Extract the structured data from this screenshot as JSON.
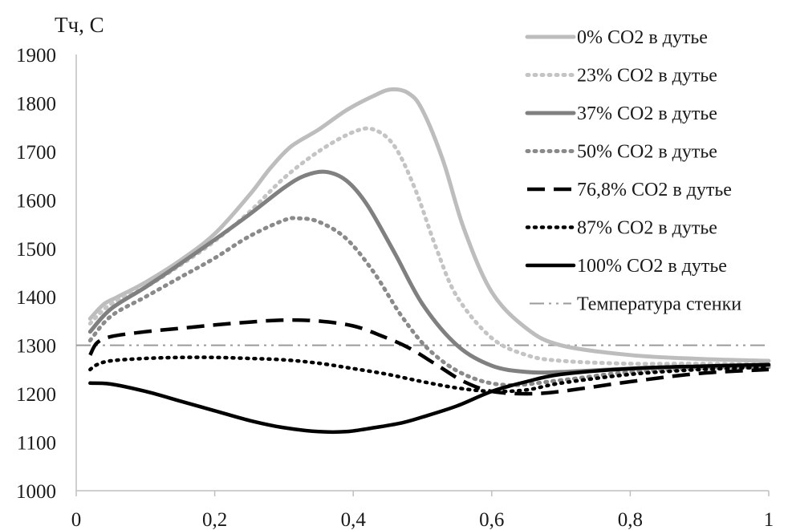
{
  "chart_data": {
    "type": "line",
    "ylabel": "Тч, С",
    "xlabel": "",
    "xlim": [
      0,
      1
    ],
    "ylim": [
      1000,
      1900
    ],
    "x_ticks": [
      {
        "value": 0,
        "label": "0"
      },
      {
        "value": 0.2,
        "label": "0,2"
      },
      {
        "value": 0.4,
        "label": "0,4"
      },
      {
        "value": 0.6,
        "label": "0,6"
      },
      {
        "value": 0.8,
        "label": "0,8"
      },
      {
        "value": 1,
        "label": "1"
      }
    ],
    "y_ticks": [
      {
        "value": 1000,
        "label": "1000"
      },
      {
        "value": 1100,
        "label": "1100"
      },
      {
        "value": 1200,
        "label": "1200"
      },
      {
        "value": 1300,
        "label": "1300"
      },
      {
        "value": 1400,
        "label": "1400"
      },
      {
        "value": 1500,
        "label": "1500"
      },
      {
        "value": 1600,
        "label": "1600"
      },
      {
        "value": 1700,
        "label": "1700"
      },
      {
        "value": 1800,
        "label": "1800"
      },
      {
        "value": 1900,
        "label": "1900"
      }
    ],
    "grid": false,
    "legend_position": "right",
    "series": [
      {
        "name": "0% CO2 в дутье",
        "color": "#bdbdbd",
        "dash": "solid",
        "width": 5,
        "points": [
          [
            0.02,
            1355
          ],
          [
            0.04,
            1385
          ],
          [
            0.06,
            1400
          ],
          [
            0.1,
            1430
          ],
          [
            0.15,
            1475
          ],
          [
            0.2,
            1530
          ],
          [
            0.25,
            1610
          ],
          [
            0.28,
            1665
          ],
          [
            0.31,
            1710
          ],
          [
            0.35,
            1745
          ],
          [
            0.39,
            1785
          ],
          [
            0.43,
            1815
          ],
          [
            0.455,
            1828
          ],
          [
            0.48,
            1820
          ],
          [
            0.5,
            1785
          ],
          [
            0.53,
            1680
          ],
          [
            0.56,
            1540
          ],
          [
            0.6,
            1410
          ],
          [
            0.65,
            1335
          ],
          [
            0.7,
            1300
          ],
          [
            0.8,
            1280
          ],
          [
            0.9,
            1272
          ],
          [
            1.0,
            1268
          ]
        ]
      },
      {
        "name": "23% CO2 в дутье",
        "color": "#c4c4c4",
        "dash": "dotted",
        "width": 5,
        "points": [
          [
            0.02,
            1345
          ],
          [
            0.05,
            1385
          ],
          [
            0.1,
            1420
          ],
          [
            0.15,
            1465
          ],
          [
            0.2,
            1515
          ],
          [
            0.25,
            1575
          ],
          [
            0.3,
            1645
          ],
          [
            0.35,
            1700
          ],
          [
            0.4,
            1740
          ],
          [
            0.43,
            1745
          ],
          [
            0.46,
            1710
          ],
          [
            0.49,
            1620
          ],
          [
            0.52,
            1500
          ],
          [
            0.55,
            1400
          ],
          [
            0.6,
            1315
          ],
          [
            0.65,
            1280
          ],
          [
            0.7,
            1268
          ],
          [
            0.8,
            1262
          ],
          [
            0.9,
            1262
          ],
          [
            1.0,
            1260
          ]
        ]
      },
      {
        "name": "37% CO2 в дутье",
        "color": "#808080",
        "dash": "solid",
        "width": 5,
        "points": [
          [
            0.02,
            1328
          ],
          [
            0.05,
            1375
          ],
          [
            0.1,
            1420
          ],
          [
            0.15,
            1468
          ],
          [
            0.2,
            1518
          ],
          [
            0.25,
            1570
          ],
          [
            0.3,
            1625
          ],
          [
            0.33,
            1650
          ],
          [
            0.36,
            1658
          ],
          [
            0.39,
            1640
          ],
          [
            0.42,
            1590
          ],
          [
            0.46,
            1490
          ],
          [
            0.5,
            1385
          ],
          [
            0.55,
            1300
          ],
          [
            0.6,
            1258
          ],
          [
            0.65,
            1245
          ],
          [
            0.7,
            1245
          ],
          [
            0.8,
            1252
          ],
          [
            0.9,
            1256
          ],
          [
            1.0,
            1258
          ]
        ]
      },
      {
        "name": "50% CO2 в дутье",
        "color": "#8a8a8a",
        "dash": "dotted",
        "width": 5,
        "points": [
          [
            0.02,
            1310
          ],
          [
            0.05,
            1360
          ],
          [
            0.1,
            1400
          ],
          [
            0.15,
            1440
          ],
          [
            0.2,
            1480
          ],
          [
            0.25,
            1525
          ],
          [
            0.3,
            1558
          ],
          [
            0.32,
            1562
          ],
          [
            0.35,
            1555
          ],
          [
            0.39,
            1520
          ],
          [
            0.43,
            1450
          ],
          [
            0.47,
            1360
          ],
          [
            0.51,
            1290
          ],
          [
            0.56,
            1240
          ],
          [
            0.62,
            1218
          ],
          [
            0.7,
            1228
          ],
          [
            0.8,
            1245
          ],
          [
            0.9,
            1252
          ],
          [
            1.0,
            1255
          ]
        ]
      },
      {
        "name": "76,8% CO2 в дутье",
        "color": "#000000",
        "dash": "dashed",
        "width": 4.5,
        "points": [
          [
            0.02,
            1280
          ],
          [
            0.03,
            1305
          ],
          [
            0.05,
            1318
          ],
          [
            0.1,
            1328
          ],
          [
            0.15,
            1335
          ],
          [
            0.2,
            1342
          ],
          [
            0.25,
            1348
          ],
          [
            0.3,
            1352
          ],
          [
            0.35,
            1350
          ],
          [
            0.4,
            1340
          ],
          [
            0.44,
            1320
          ],
          [
            0.48,
            1295
          ],
          [
            0.52,
            1260
          ],
          [
            0.56,
            1225
          ],
          [
            0.6,
            1205
          ],
          [
            0.65,
            1200
          ],
          [
            0.7,
            1205
          ],
          [
            0.8,
            1225
          ],
          [
            0.9,
            1242
          ],
          [
            1.0,
            1250
          ]
        ]
      },
      {
        "name": "87% CO2 в дутье",
        "color": "#000000",
        "dash": "dotted",
        "width": 4.5,
        "points": [
          [
            0.02,
            1250
          ],
          [
            0.03,
            1260
          ],
          [
            0.05,
            1268
          ],
          [
            0.1,
            1273
          ],
          [
            0.15,
            1275
          ],
          [
            0.2,
            1275
          ],
          [
            0.25,
            1273
          ],
          [
            0.3,
            1270
          ],
          [
            0.35,
            1263
          ],
          [
            0.4,
            1252
          ],
          [
            0.45,
            1240
          ],
          [
            0.5,
            1225
          ],
          [
            0.55,
            1212
          ],
          [
            0.6,
            1205
          ],
          [
            0.65,
            1208
          ],
          [
            0.7,
            1222
          ],
          [
            0.8,
            1240
          ],
          [
            0.9,
            1250
          ],
          [
            1.0,
            1255
          ]
        ]
      },
      {
        "name": "100% CO2 в дутье",
        "color": "#000000",
        "dash": "solid",
        "width": 4.5,
        "points": [
          [
            0.02,
            1222
          ],
          [
            0.05,
            1220
          ],
          [
            0.1,
            1205
          ],
          [
            0.15,
            1185
          ],
          [
            0.2,
            1165
          ],
          [
            0.25,
            1145
          ],
          [
            0.3,
            1130
          ],
          [
            0.35,
            1122
          ],
          [
            0.39,
            1122
          ],
          [
            0.43,
            1130
          ],
          [
            0.47,
            1140
          ],
          [
            0.5,
            1152
          ],
          [
            0.55,
            1175
          ],
          [
            0.6,
            1205
          ],
          [
            0.65,
            1225
          ],
          [
            0.7,
            1240
          ],
          [
            0.8,
            1252
          ],
          [
            0.9,
            1257
          ],
          [
            1.0,
            1260
          ]
        ]
      },
      {
        "name": "Температура стенки",
        "color": "#9a9a9a",
        "dash": "dashdotdot",
        "width": 2,
        "points": [
          [
            0.0,
            1300
          ],
          [
            1.0,
            1300
          ]
        ]
      }
    ]
  }
}
